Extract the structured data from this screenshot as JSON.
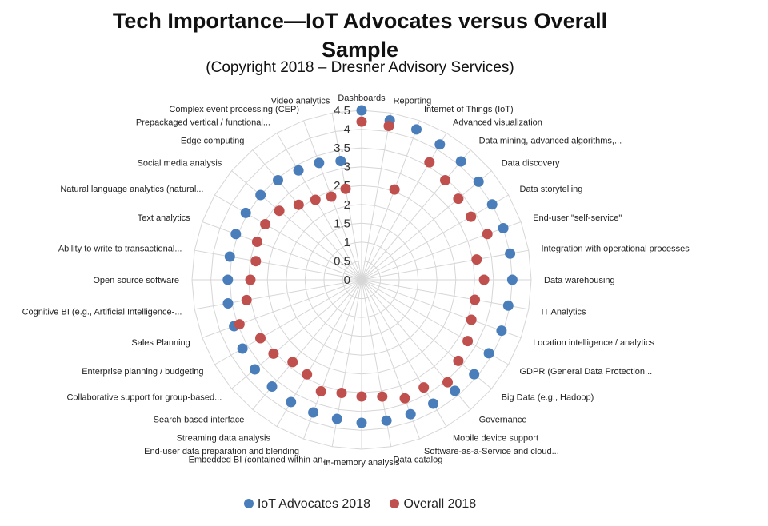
{
  "chart_data": {
    "type": "radar",
    "title": "Tech Importance—IoT Advocates versus Overall Sample",
    "subtitle": "(Copyright 2018 – Dresner Advisory Services)",
    "axis_ticks": [
      "0",
      "0.5",
      "1",
      "1.5",
      "2",
      "2.5",
      "3",
      "3.5",
      "4",
      "4.5"
    ],
    "rlim": [
      0,
      4.5
    ],
    "grid": true,
    "legend_position": "bottom",
    "categories": [
      "Dashboards",
      "Reporting",
      "Internet of Things (IoT)",
      "Advanced visualization",
      "Data mining, advanced algorithms,...",
      "Data discovery",
      "Data storytelling",
      "End-user \"self-service\"",
      "Integration with operational processes",
      "Data warehousing",
      "IT Analytics",
      "Location intelligence / analytics",
      "GDPR (General Data Protection...",
      "Big Data (e.g., Hadoop)",
      "Governance",
      "Mobile device support",
      "Software-as-a-Service and cloud...",
      "Data catalog",
      "In-memory analysis",
      "Embedded BI (contained within an...",
      "End-user data preparation and blending",
      "Streaming data analysis",
      "Search-based interface",
      "Collaborative support for group-based...",
      "Enterprise planning / budgeting",
      "Sales Planning",
      "Cognitive BI (e.g., Artificial Intelligence-...",
      "Open source software",
      "Ability to write to transactional...",
      "Text analytics",
      "Natural language analytics (natural...",
      "Social media analysis",
      "Edge computing",
      "Prepackaged vertical / functional...",
      "Complex event processing (CEP)",
      "Video analytics"
    ],
    "series": [
      {
        "name": "IoT Advocates 2018",
        "color": "#4a7ebb",
        "values": [
          4.5,
          4.3,
          4.25,
          4.15,
          4.1,
          4.05,
          4.0,
          4.0,
          4.0,
          4.0,
          3.95,
          3.95,
          3.9,
          3.9,
          3.85,
          3.8,
          3.8,
          3.8,
          3.8,
          3.75,
          3.75,
          3.75,
          3.7,
          3.7,
          3.65,
          3.6,
          3.6,
          3.55,
          3.55,
          3.55,
          3.55,
          3.5,
          3.45,
          3.35,
          3.3,
          3.2
        ]
      },
      {
        "name": "Overall 2018",
        "color": "#c0504d",
        "values": [
          4.2,
          4.15,
          2.55,
          3.6,
          3.45,
          3.35,
          3.35,
          3.55,
          3.1,
          3.25,
          3.05,
          3.1,
          3.25,
          3.35,
          3.55,
          3.3,
          3.35,
          3.15,
          3.1,
          3.05,
          3.15,
          2.9,
          2.85,
          3.05,
          3.1,
          3.45,
          3.1,
          2.95,
          2.85,
          2.95,
          2.95,
          2.85,
          2.6,
          2.45,
          2.35,
          2.45
        ]
      }
    ]
  }
}
